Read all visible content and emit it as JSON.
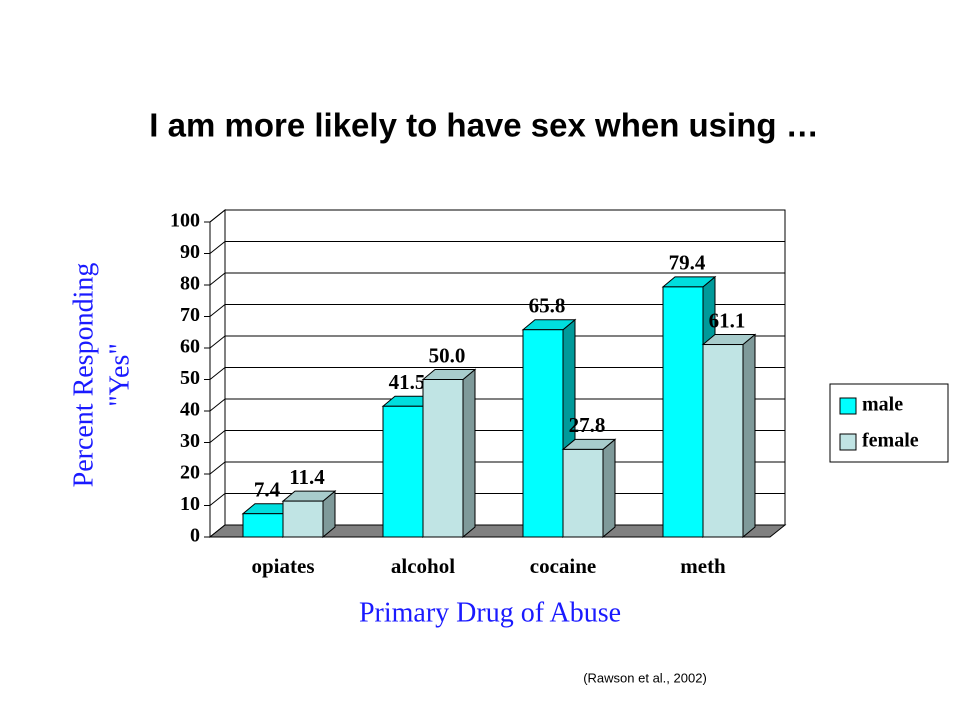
{
  "chart_data": {
    "type": "bar3d",
    "title": "I am more likely to have sex when using …",
    "categories": [
      "opiates",
      "alcohol",
      "cocaine",
      "meth"
    ],
    "series": [
      {
        "name": "male",
        "color": "#00ffff",
        "values": [
          7.4,
          41.5,
          65.8,
          79.4
        ],
        "value_labels": [
          "7.4",
          "41.5",
          "65.8",
          "79.4"
        ]
      },
      {
        "name": "female",
        "color": "#c0e4e4",
        "values": [
          11.4,
          50.0,
          27.8,
          61.1
        ],
        "value_labels": [
          "11.4",
          "50.0",
          "27.8",
          "61.1"
        ]
      }
    ],
    "ylim": [
      0,
      100
    ],
    "yticks": [
      0,
      10,
      20,
      30,
      40,
      50,
      60,
      70,
      80,
      90,
      100
    ],
    "grid": true,
    "ylabel": [
      "Percent Responding",
      "\"Yes\""
    ],
    "xlabel": "Primary Drug of Abuse",
    "legend": "right",
    "source": "(Rawson et al., 2002)"
  }
}
